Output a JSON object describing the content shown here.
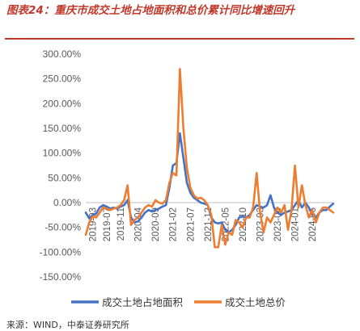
{
  "header": {
    "title": "图表24：重庆市成交土地占地面积和总价累计同比增速回升"
  },
  "source": "来源：WIND，中泰证券研究所",
  "chart_data": {
    "type": "line",
    "title": "",
    "xlabel": "",
    "ylabel": "",
    "ylim": [
      -150,
      300
    ],
    "y_ticks": [
      -150,
      -100,
      -50,
      0,
      50,
      100,
      150,
      200,
      250,
      300
    ],
    "y_tick_labels": [
      "-150.00%",
      "-100.00%",
      "-50.00%",
      "0.00%",
      "50.00%",
      "100.00%",
      "150.00%",
      "200.00%",
      "250.00%",
      "300.00%"
    ],
    "x_range": [
      "2019-01",
      "2024-12"
    ],
    "x_tick_labels": [
      "2019-03",
      "2019-07",
      "2019-11",
      "2020-04",
      "2020-09",
      "2021-02",
      "2021-07",
      "2021-12",
      "2022-05",
      "2022-10",
      "2023-03",
      "2023-08",
      "2024-01",
      "2024-06"
    ],
    "grid": false,
    "legend_position": "bottom",
    "series": [
      {
        "name": "成交土地占地面积",
        "color": "#4472C4",
        "x": [
          "2019-01",
          "2019-02",
          "2019-03",
          "2019-04",
          "2019-05",
          "2019-06",
          "2019-07",
          "2019-08",
          "2019-09",
          "2019-10",
          "2019-11",
          "2019-12",
          "2020-01",
          "2020-02",
          "2020-03",
          "2020-04",
          "2020-05",
          "2020-06",
          "2020-07",
          "2020-08",
          "2020-09",
          "2020-10",
          "2020-11",
          "2020-12",
          "2021-01",
          "2021-02",
          "2021-03",
          "2021-04",
          "2021-05",
          "2021-06",
          "2021-07",
          "2021-08",
          "2021-09",
          "2021-10",
          "2021-11",
          "2021-12",
          "2022-01",
          "2022-02",
          "2022-03",
          "2022-04",
          "2022-05",
          "2022-06",
          "2022-07",
          "2022-08",
          "2022-09",
          "2022-10",
          "2022-11",
          "2022-12",
          "2023-01",
          "2023-02",
          "2023-03",
          "2023-04",
          "2023-05",
          "2023-06",
          "2023-07",
          "2023-08",
          "2023-09",
          "2023-10",
          "2023-11",
          "2023-12",
          "2024-01",
          "2024-02",
          "2024-03",
          "2024-04",
          "2024-05",
          "2024-06",
          "2024-07",
          "2024-08",
          "2024-09",
          "2024-10",
          "2024-11",
          "2024-12"
        ],
        "values": [
          -20,
          -32,
          -25,
          -22,
          -10,
          -5,
          -8,
          -12,
          -10,
          -12,
          -8,
          -5,
          5,
          -30,
          -40,
          -38,
          -30,
          -20,
          -15,
          -18,
          -15,
          -12,
          -8,
          -5,
          30,
          75,
          80,
          140,
          90,
          40,
          20,
          10,
          5,
          0,
          -2,
          -5,
          -30,
          -40,
          -42,
          -40,
          -55,
          -60,
          -55,
          -45,
          -30,
          -28,
          -30,
          -25,
          -15,
          -5,
          -8,
          -10,
          -5,
          15,
          -10,
          -20,
          -25,
          -20,
          -18,
          -15,
          -5,
          5,
          -10,
          0,
          -10,
          -25,
          -30,
          -20,
          -15,
          -15,
          -8,
          -2
        ]
      },
      {
        "name": "成交土地总价",
        "color": "#ED7D31",
        "x": [
          "2019-01",
          "2019-02",
          "2019-03",
          "2019-04",
          "2019-05",
          "2019-06",
          "2019-07",
          "2019-08",
          "2019-09",
          "2019-10",
          "2019-11",
          "2019-12",
          "2020-01",
          "2020-02",
          "2020-03",
          "2020-04",
          "2020-05",
          "2020-06",
          "2020-07",
          "2020-08",
          "2020-09",
          "2020-10",
          "2020-11",
          "2020-12",
          "2021-01",
          "2021-02",
          "2021-03",
          "2021-04",
          "2021-05",
          "2021-06",
          "2021-07",
          "2021-08",
          "2021-09",
          "2021-10",
          "2021-11",
          "2021-12",
          "2022-01",
          "2022-02",
          "2022-03",
          "2022-04",
          "2022-05",
          "2022-06",
          "2022-07",
          "2022-08",
          "2022-09",
          "2022-10",
          "2022-11",
          "2022-12",
          "2023-01",
          "2023-02",
          "2023-03",
          "2023-04",
          "2023-05",
          "2023-06",
          "2023-07",
          "2023-08",
          "2023-09",
          "2023-10",
          "2023-11",
          "2023-12",
          "2024-01",
          "2024-02",
          "2024-03",
          "2024-04",
          "2024-05",
          "2024-06",
          "2024-07",
          "2024-08",
          "2024-09",
          "2024-10",
          "2024-11",
          "2024-12"
        ],
        "values": [
          -65,
          -40,
          -28,
          -30,
          -20,
          -10,
          -12,
          -15,
          -12,
          -10,
          -5,
          5,
          35,
          -45,
          -35,
          -30,
          -20,
          -10,
          -5,
          -8,
          5,
          0,
          -2,
          5,
          40,
          60,
          55,
          270,
          150,
          70,
          30,
          15,
          8,
          10,
          5,
          -5,
          -25,
          -90,
          -90,
          -45,
          -85,
          -60,
          -65,
          -35,
          -40,
          -50,
          -30,
          -30,
          -10,
          60,
          -20,
          -60,
          -30,
          -40,
          -25,
          -10,
          -20,
          -5,
          -55,
          -15,
          75,
          -10,
          35,
          -5,
          -30,
          -15,
          -40,
          -20,
          -10,
          -10,
          -15,
          -20
        ]
      }
    ]
  }
}
